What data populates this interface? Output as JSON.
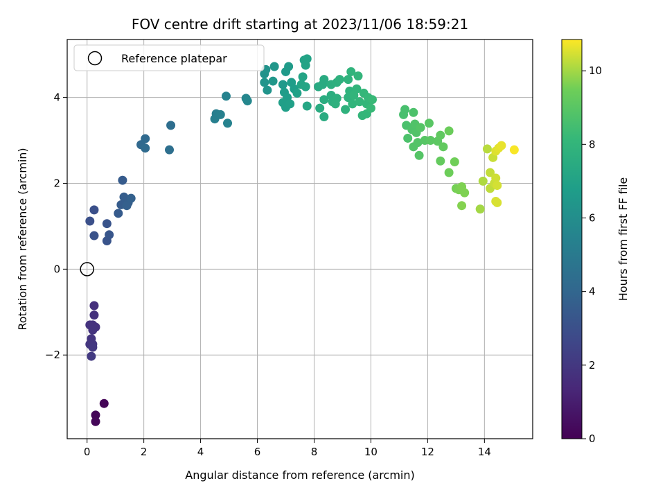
{
  "chart_data": {
    "type": "scatter",
    "title": "FOV centre drift starting at 2023/11/06 18:59:21",
    "xlabel": "Angular distance from reference (arcmin)",
    "ylabel": "Rotation from reference (arcmin)",
    "xlim": [
      -0.7,
      15.7
    ],
    "ylim": [
      -3.95,
      5.35
    ],
    "xticks": [
      0,
      2,
      4,
      6,
      8,
      10,
      12,
      14
    ],
    "yticks": [
      -2,
      0,
      2,
      4
    ],
    "grid": true,
    "legend": {
      "position": "top-left",
      "entries": [
        "Reference platepar"
      ]
    },
    "reference_point": {
      "x": 0,
      "y": 0
    },
    "colorbar": {
      "label": "Hours from first FF file",
      "min": 0,
      "max": 10.85,
      "ticks": [
        0,
        2,
        4,
        6,
        8,
        10
      ],
      "colormap": "viridis"
    },
    "series": [
      {
        "points": [
          [
            0.6,
            -3.13,
            0.1
          ],
          [
            0.3,
            -3.4,
            0.15
          ],
          [
            0.3,
            -3.55,
            0.2
          ],
          [
            0.25,
            -0.85,
            1.7
          ],
          [
            0.25,
            -1.07,
            1.75
          ],
          [
            0.3,
            -1.35,
            1.75
          ],
          [
            0.2,
            -1.3,
            1.8
          ],
          [
            0.1,
            -1.3,
            1.8
          ],
          [
            0.2,
            -1.42,
            1.85
          ],
          [
            0.15,
            -1.62,
            1.9
          ],
          [
            0.1,
            -1.75,
            1.95
          ],
          [
            0.2,
            -1.75,
            1.95
          ],
          [
            0.2,
            -1.82,
            2.0
          ],
          [
            0.15,
            -2.03,
            2.1
          ],
          [
            0.1,
            1.12,
            3.0
          ],
          [
            0.25,
            1.38,
            3.0
          ],
          [
            0.25,
            0.78,
            3.1
          ],
          [
            0.7,
            1.06,
            3.2
          ],
          [
            0.7,
            0.66,
            3.2
          ],
          [
            0.78,
            0.8,
            3.3
          ],
          [
            1.25,
            2.07,
            3.5
          ],
          [
            1.1,
            1.3,
            3.5
          ],
          [
            1.2,
            1.5,
            3.55
          ],
          [
            1.3,
            1.68,
            3.6
          ],
          [
            1.45,
            1.55,
            3.65
          ],
          [
            1.4,
            1.48,
            3.7
          ],
          [
            1.55,
            1.65,
            3.75
          ],
          [
            1.9,
            2.9,
            4.1
          ],
          [
            2.05,
            3.04,
            4.15
          ],
          [
            2.05,
            2.82,
            4.2
          ],
          [
            2.95,
            3.35,
            4.4
          ],
          [
            2.9,
            2.78,
            4.45
          ],
          [
            4.55,
            3.62,
            5.2
          ],
          [
            4.5,
            3.5,
            5.25
          ],
          [
            4.7,
            3.6,
            5.3
          ],
          [
            4.9,
            4.03,
            5.4
          ],
          [
            4.95,
            3.4,
            5.4
          ],
          [
            5.6,
            3.98,
            5.6
          ],
          [
            5.65,
            3.92,
            5.65
          ],
          [
            6.25,
            4.55,
            6.2
          ],
          [
            6.3,
            4.65,
            6.25
          ],
          [
            6.25,
            4.35,
            6.3
          ],
          [
            6.35,
            4.17,
            6.3
          ],
          [
            6.6,
            4.72,
            6.4
          ],
          [
            6.55,
            4.38,
            6.45
          ],
          [
            6.9,
            4.3,
            6.55
          ],
          [
            7.0,
            4.6,
            6.6
          ],
          [
            7.1,
            4.72,
            6.65
          ],
          [
            6.95,
            4.12,
            6.7
          ],
          [
            7.2,
            4.35,
            6.75
          ],
          [
            7.05,
            4.0,
            6.75
          ],
          [
            7.3,
            4.2,
            6.8
          ],
          [
            6.9,
            3.88,
            6.85
          ],
          [
            7.0,
            3.77,
            6.85
          ],
          [
            7.15,
            3.85,
            6.9
          ],
          [
            7.4,
            4.1,
            6.95
          ],
          [
            7.65,
            4.87,
            7.0
          ],
          [
            7.75,
            4.9,
            7.05
          ],
          [
            7.7,
            4.75,
            7.05
          ],
          [
            7.6,
            4.48,
            7.1
          ],
          [
            7.55,
            4.3,
            7.1
          ],
          [
            7.7,
            4.25,
            7.15
          ],
          [
            7.75,
            3.8,
            7.2
          ],
          [
            8.15,
            4.25,
            7.4
          ],
          [
            8.3,
            4.3,
            7.45
          ],
          [
            8.35,
            4.42,
            7.45
          ],
          [
            8.2,
            3.75,
            7.5
          ],
          [
            8.35,
            3.55,
            7.5
          ],
          [
            8.35,
            3.95,
            7.55
          ],
          [
            8.6,
            4.05,
            7.6
          ],
          [
            8.65,
            3.9,
            7.65
          ],
          [
            8.6,
            4.3,
            7.65
          ],
          [
            8.8,
            4.35,
            7.7
          ],
          [
            8.8,
            3.98,
            7.7
          ],
          [
            8.9,
            4.42,
            7.75
          ],
          [
            8.75,
            3.85,
            7.75
          ],
          [
            9.1,
            3.72,
            7.8
          ],
          [
            9.2,
            4.0,
            7.8
          ],
          [
            9.25,
            4.15,
            7.85
          ],
          [
            9.2,
            4.42,
            7.85
          ],
          [
            9.3,
            4.6,
            7.9
          ],
          [
            9.35,
            3.85,
            7.95
          ],
          [
            9.5,
            4.2,
            7.95
          ],
          [
            9.4,
            4.05,
            8.0
          ],
          [
            9.55,
            4.5,
            8.0
          ],
          [
            9.6,
            3.9,
            8.05
          ],
          [
            9.7,
            3.58,
            8.05
          ],
          [
            9.85,
            3.62,
            8.1
          ],
          [
            9.75,
            4.1,
            8.1
          ],
          [
            9.85,
            3.85,
            8.1
          ],
          [
            9.9,
            4.0,
            8.15
          ],
          [
            10.05,
            3.95,
            8.2
          ],
          [
            10.0,
            3.75,
            8.2
          ],
          [
            11.15,
            3.6,
            8.6
          ],
          [
            11.2,
            3.72,
            8.6
          ],
          [
            11.25,
            3.35,
            8.65
          ],
          [
            11.3,
            3.05,
            8.7
          ],
          [
            11.5,
            3.65,
            8.7
          ],
          [
            11.45,
            3.25,
            8.75
          ],
          [
            11.55,
            3.38,
            8.8
          ],
          [
            11.6,
            3.18,
            8.8
          ],
          [
            11.5,
            2.85,
            8.85
          ],
          [
            11.65,
            2.95,
            8.85
          ],
          [
            11.7,
            2.65,
            8.9
          ],
          [
            11.75,
            3.3,
            8.9
          ],
          [
            11.9,
            3.0,
            8.95
          ],
          [
            12.05,
            3.4,
            9.0
          ],
          [
            12.1,
            3.0,
            9.05
          ],
          [
            12.35,
            2.98,
            9.1
          ],
          [
            12.45,
            3.12,
            9.15
          ],
          [
            12.55,
            2.85,
            9.2
          ],
          [
            12.45,
            2.52,
            9.25
          ],
          [
            12.75,
            3.22,
            9.4
          ],
          [
            12.75,
            2.25,
            9.45
          ],
          [
            12.95,
            2.5,
            9.5
          ],
          [
            13.0,
            1.88,
            9.55
          ],
          [
            13.1,
            1.85,
            9.6
          ],
          [
            13.2,
            1.92,
            9.65
          ],
          [
            13.3,
            1.78,
            9.65
          ],
          [
            13.2,
            1.48,
            9.7
          ],
          [
            13.85,
            1.4,
            10.0
          ],
          [
            13.95,
            2.05,
            10.1
          ],
          [
            14.1,
            2.8,
            10.2
          ],
          [
            14.2,
            1.88,
            10.25
          ],
          [
            14.2,
            2.25,
            10.3
          ],
          [
            14.35,
            2.0,
            10.35
          ],
          [
            14.3,
            2.6,
            10.35
          ],
          [
            14.4,
            2.12,
            10.4
          ],
          [
            14.45,
            1.95,
            10.45
          ],
          [
            14.4,
            1.58,
            10.5
          ],
          [
            14.45,
            1.55,
            10.5
          ],
          [
            14.4,
            2.75,
            10.55
          ],
          [
            14.5,
            2.82,
            10.6
          ],
          [
            14.6,
            2.88,
            10.65
          ],
          [
            15.05,
            2.78,
            10.8
          ]
        ]
      }
    ]
  }
}
